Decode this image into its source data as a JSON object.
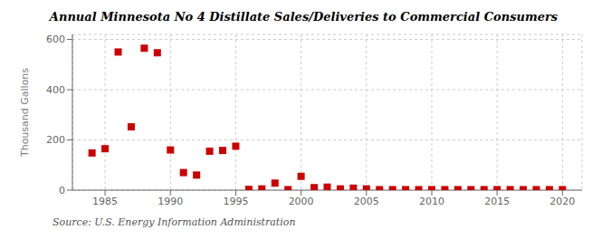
{
  "chart_data": {
    "type": "scatter",
    "title": "Annual Minnesota No 4 Distillate Sales/Deliveries to Commercial Consumers",
    "ylabel": "Thousand Gallons",
    "annotations": [
      "Source: U.S. Energy Information Administration"
    ],
    "x": [
      1984,
      1985,
      1986,
      1987,
      1988,
      1989,
      1990,
      1991,
      1992,
      1993,
      1994,
      1995,
      1996,
      1997,
      1998,
      1999,
      2000,
      2001,
      2002,
      2003,
      2004,
      2005,
      2006,
      2007,
      2008,
      2009,
      2010,
      2011,
      2012,
      2013,
      2014,
      2015,
      2016,
      2017,
      2018,
      2019,
      2020
    ],
    "values": [
      148,
      165,
      550,
      252,
      565,
      547,
      160,
      70,
      60,
      155,
      158,
      175,
      3,
      5,
      28,
      2,
      55,
      10,
      12,
      5,
      8,
      5,
      2,
      2,
      2,
      2,
      2,
      2,
      2,
      2,
      2,
      2,
      2,
      2,
      2,
      2,
      2
    ],
    "color": "#cc0000",
    "marker": "square",
    "xlim": [
      1982.5,
      2021.5
    ],
    "ylim": [
      0,
      620
    ],
    "xticks": [
      1985,
      1990,
      1995,
      2000,
      2005,
      2010,
      2015,
      2020
    ],
    "yticks": [
      0,
      200,
      400,
      600
    ],
    "grid": true
  }
}
